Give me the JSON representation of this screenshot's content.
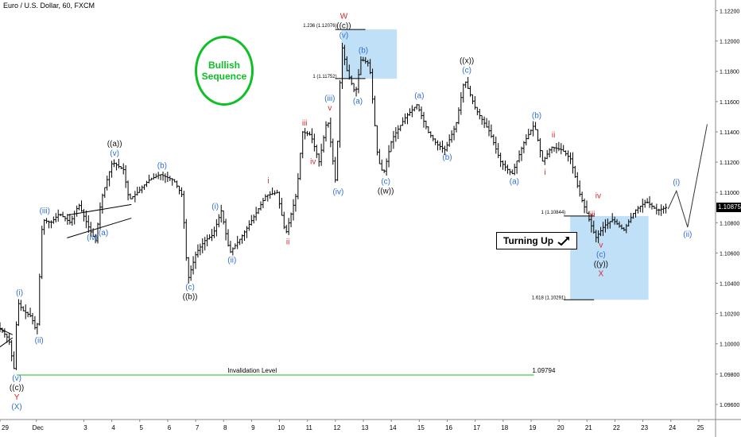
{
  "header": {
    "title": "Euro / U.S. Dollar, 60, FXCM"
  },
  "badge": {
    "text_line1": "Bullish",
    "text_line2": "Sequence"
  },
  "turning_box": {
    "label": "Turning Up",
    "icon": "arrow-up-right-icon"
  },
  "colors": {
    "blue_label": "#2f6fd6",
    "red_label": "#d42a2a",
    "black_label": "#111111",
    "green": "#0fbf26",
    "zone_fill": "#bfe0f7",
    "candle": "#000000"
  },
  "chart_data": {
    "type": "ohlc",
    "symbol": "Euro / U.S. Dollar",
    "timeframe": "60",
    "y_axis": {
      "range": [
        1.095,
        1.1225
      ],
      "ticks": [
        "1.12200",
        "1.12000",
        "1.11800",
        "1.11600",
        "1.11400",
        "1.11200",
        "1.11000",
        "1.10800",
        "1.10600",
        "1.10400",
        "1.10200",
        "1.10000",
        "1.09800",
        "1.09600"
      ],
      "tick_values": [
        1.122,
        1.12,
        1.118,
        1.116,
        1.114,
        1.112,
        1.11,
        1.108,
        1.106,
        1.104,
        1.102,
        1.1,
        1.098,
        1.096
      ],
      "current_price": "1.10875"
    },
    "x_axis": {
      "range": [
        0,
        25.6
      ],
      "ticks": [
        {
          "day": 0.0,
          "label": "29"
        },
        {
          "day": 1.3,
          "label": "Dec"
        },
        {
          "day": 3.0,
          "label": "3"
        },
        {
          "day": 4.0,
          "label": "4"
        },
        {
          "day": 5.0,
          "label": "5"
        },
        {
          "day": 6.0,
          "label": "6"
        },
        {
          "day": 7.0,
          "label": "7"
        },
        {
          "day": 8.0,
          "label": "8"
        },
        {
          "day": 9.0,
          "label": "9"
        },
        {
          "day": 10.0,
          "label": "10"
        },
        {
          "day": 11.0,
          "label": "11"
        },
        {
          "day": 12.0,
          "label": "12"
        },
        {
          "day": 13.0,
          "label": "13"
        },
        {
          "day": 14.0,
          "label": "14"
        },
        {
          "day": 15.0,
          "label": "15"
        },
        {
          "day": 16.0,
          "label": "16"
        },
        {
          "day": 17.0,
          "label": "17"
        },
        {
          "day": 18.0,
          "label": "18"
        },
        {
          "day": 19.0,
          "label": "19"
        },
        {
          "day": 20.0,
          "label": "20"
        },
        {
          "day": 21.0,
          "label": "21"
        },
        {
          "day": 22.0,
          "label": "22"
        },
        {
          "day": 23.0,
          "label": "23"
        },
        {
          "day": 24.0,
          "label": "24"
        },
        {
          "day": 25.0,
          "label": "25"
        }
      ]
    },
    "price_path": [
      [
        0,
        1.1012
      ],
      [
        0.4,
        1.1003
      ],
      [
        0.5,
        1.0992
      ],
      [
        0.6,
        1.0982
      ],
      [
        0.7,
        1.1028
      ],
      [
        0.9,
        1.1022
      ],
      [
        1.2,
        1.1018
      ],
      [
        1.4,
        1.1007
      ],
      [
        1.6,
        1.1082
      ],
      [
        1.9,
        1.108
      ],
      [
        2.2,
        1.1086
      ],
      [
        2.6,
        1.108
      ],
      [
        2.9,
        1.1092
      ],
      [
        3.3,
        1.1075
      ],
      [
        3.5,
        1.1068
      ],
      [
        3.7,
        1.1095
      ],
      [
        4.1,
        1.112
      ],
      [
        4.5,
        1.1115
      ],
      [
        4.7,
        1.1095
      ],
      [
        5.0,
        1.11
      ],
      [
        5.4,
        1.1108
      ],
      [
        5.8,
        1.1112
      ],
      [
        6.3,
        1.1108
      ],
      [
        6.6,
        1.1098
      ],
      [
        6.8,
        1.1042
      ],
      [
        7.1,
        1.106
      ],
      [
        7.4,
        1.1068
      ],
      [
        7.7,
        1.1072
      ],
      [
        8.0,
        1.1088
      ],
      [
        8.3,
        1.106
      ],
      [
        8.7,
        1.107
      ],
      [
        9.2,
        1.1085
      ],
      [
        9.6,
        1.1098
      ],
      [
        10.0,
        1.11
      ],
      [
        10.3,
        1.1072
      ],
      [
        10.7,
        1.11
      ],
      [
        10.9,
        1.114
      ],
      [
        11.2,
        1.1138
      ],
      [
        11.5,
        1.112
      ],
      [
        11.8,
        1.115
      ],
      [
        12.1,
        1.1105
      ],
      [
        12.3,
        1.1198
      ],
      [
        12.5,
        1.118
      ],
      [
        12.8,
        1.1165
      ],
      [
        13.0,
        1.1188
      ],
      [
        13.3,
        1.1185
      ],
      [
        13.6,
        1.1122
      ],
      [
        13.8,
        1.1112
      ],
      [
        14.1,
        1.1135
      ],
      [
        14.6,
        1.115
      ],
      [
        15.0,
        1.1158
      ],
      [
        15.4,
        1.114
      ],
      [
        15.7,
        1.1132
      ],
      [
        16.0,
        1.1128
      ],
      [
        16.4,
        1.1145
      ],
      [
        16.7,
        1.1175
      ],
      [
        17.1,
        1.1155
      ],
      [
        17.6,
        1.114
      ],
      [
        18.0,
        1.112
      ],
      [
        18.4,
        1.1112
      ],
      [
        18.8,
        1.1132
      ],
      [
        19.2,
        1.1145
      ],
      [
        19.5,
        1.112
      ],
      [
        19.8,
        1.113
      ],
      [
        20.2,
        1.1128
      ],
      [
        20.5,
        1.1122
      ],
      [
        20.8,
        1.11
      ],
      [
        21.1,
        1.1085
      ],
      [
        21.4,
        1.107
      ],
      [
        21.7,
        1.1078
      ],
      [
        22.0,
        1.1082
      ],
      [
        22.4,
        1.1075
      ],
      [
        22.8,
        1.1088
      ],
      [
        23.2,
        1.1094
      ],
      [
        23.6,
        1.1088
      ],
      [
        23.9,
        1.109
      ]
    ],
    "projection": [
      [
        23.9,
        1.1089
      ],
      [
        24.2,
        1.1101
      ],
      [
        24.6,
        1.1077
      ],
      [
        25.3,
        1.1145
      ]
    ],
    "zones": [
      {
        "x_start": 12.22,
        "x_end": 14.2,
        "y_low": 1.11752,
        "y_high": 1.12076,
        "top_label": "1.236 (1.12076)",
        "bottom_label": "1 (1.11752)"
      },
      {
        "x_start": 20.4,
        "x_end": 23.2,
        "y_low": 1.10291,
        "y_high": 1.10844,
        "top_label": "1 (1.10844)",
        "bottom_label": "1.618 (1.10291)"
      }
    ],
    "invalidation": {
      "label": "Invalidation Level",
      "value": "1.09794",
      "y": 1.09794,
      "x_start": 0.6,
      "x_end": 19.1
    },
    "triangle": {
      "x": [
        2.4,
        4.7
      ],
      "top": [
        1.1085,
        1.1092
      ],
      "bottom": [
        1.107,
        1.1083
      ]
    },
    "wave_labels": [
      {
        "text": "(v)",
        "x": 0.6,
        "y": 1.0982,
        "color": "blue",
        "pos": "below1"
      },
      {
        "text": "((c))",
        "x": 0.6,
        "y": 1.0982,
        "color": "black",
        "pos": "below2"
      },
      {
        "text": "Y",
        "x": 0.6,
        "y": 1.0982,
        "color": "red",
        "pos": "below3"
      },
      {
        "text": "(X)",
        "x": 0.6,
        "y": 1.0982,
        "color": "blue",
        "pos": "below4"
      },
      {
        "text": "(i)",
        "x": 0.7,
        "y": 1.1028,
        "color": "blue",
        "pos": "above1"
      },
      {
        "text": "(ii)",
        "x": 1.4,
        "y": 1.1007,
        "color": "blue",
        "pos": "below1"
      },
      {
        "text": "(iii)",
        "x": 1.6,
        "y": 1.1082,
        "color": "blue",
        "pos": "above1"
      },
      {
        "text": "(iv)",
        "x": 3.3,
        "y": 1.1075,
        "color": "blue",
        "pos": "below1"
      },
      {
        "text": "(a)",
        "x": 3.7,
        "y": 1.1078,
        "color": "blue",
        "pos": "below1"
      },
      {
        "text": "(v)",
        "x": 4.1,
        "y": 1.112,
        "color": "blue",
        "pos": "above1"
      },
      {
        "text": "((a))",
        "x": 4.1,
        "y": 1.112,
        "color": "black",
        "pos": "above2"
      },
      {
        "text": "(b)",
        "x": 5.8,
        "y": 1.1112,
        "color": "blue",
        "pos": "above1"
      },
      {
        "text": "(c)",
        "x": 6.8,
        "y": 1.1042,
        "color": "blue",
        "pos": "below1"
      },
      {
        "text": "((b))",
        "x": 6.8,
        "y": 1.1042,
        "color": "black",
        "pos": "below2"
      },
      {
        "text": "(i)",
        "x": 7.7,
        "y": 1.1085,
        "color": "blue",
        "pos": "above1"
      },
      {
        "text": "(ii)",
        "x": 8.3,
        "y": 1.106,
        "color": "blue",
        "pos": "below1"
      },
      {
        "text": "i",
        "x": 9.6,
        "y": 1.1102,
        "color": "red",
        "pos": "above1"
      },
      {
        "text": "ii",
        "x": 10.3,
        "y": 1.1072,
        "color": "red",
        "pos": "below1"
      },
      {
        "text": "iii",
        "x": 10.9,
        "y": 1.114,
        "color": "red",
        "pos": "above1"
      },
      {
        "text": "iv",
        "x": 11.2,
        "y": 1.1125,
        "color": "red",
        "pos": "below1"
      },
      {
        "text": "v",
        "x": 11.8,
        "y": 1.115,
        "color": "red",
        "pos": "above1"
      },
      {
        "text": "(iii)",
        "x": 11.8,
        "y": 1.115,
        "color": "blue",
        "pos": "above2"
      },
      {
        "text": "(iv)",
        "x": 12.1,
        "y": 1.1105,
        "color": "blue",
        "pos": "below1"
      },
      {
        "text": "(v)",
        "x": 12.3,
        "y": 1.1198,
        "color": "blue",
        "pos": "above1"
      },
      {
        "text": "((c))",
        "x": 12.3,
        "y": 1.1198,
        "color": "black",
        "pos": "above2"
      },
      {
        "text": "W",
        "x": 12.3,
        "y": 1.1198,
        "color": "red",
        "pos": "above3"
      },
      {
        "text": "(a)",
        "x": 12.8,
        "y": 1.1165,
        "color": "blue",
        "pos": "below1"
      },
      {
        "text": "(b)",
        "x": 13.0,
        "y": 1.1188,
        "color": "blue",
        "pos": "above1"
      },
      {
        "text": "(c)",
        "x": 13.8,
        "y": 1.1112,
        "color": "blue",
        "pos": "below1"
      },
      {
        "text": "((w))",
        "x": 13.8,
        "y": 1.1112,
        "color": "black",
        "pos": "below2"
      },
      {
        "text": "(a)",
        "x": 15.0,
        "y": 1.1158,
        "color": "blue",
        "pos": "above1"
      },
      {
        "text": "(b)",
        "x": 16.0,
        "y": 1.1128,
        "color": "blue",
        "pos": "below1"
      },
      {
        "text": "(c)",
        "x": 16.7,
        "y": 1.1175,
        "color": "blue",
        "pos": "above1"
      },
      {
        "text": "((x))",
        "x": 16.7,
        "y": 1.1175,
        "color": "black",
        "pos": "above2"
      },
      {
        "text": "(a)",
        "x": 18.4,
        "y": 1.1112,
        "color": "blue",
        "pos": "below1"
      },
      {
        "text": "(b)",
        "x": 19.2,
        "y": 1.1145,
        "color": "blue",
        "pos": "above1"
      },
      {
        "text": "i",
        "x": 19.5,
        "y": 1.1118,
        "color": "red",
        "pos": "below1"
      },
      {
        "text": "ii",
        "x": 19.8,
        "y": 1.1132,
        "color": "red",
        "pos": "above1"
      },
      {
        "text": "iii",
        "x": 21.2,
        "y": 1.109,
        "color": "red",
        "pos": "below1"
      },
      {
        "text": "iv",
        "x": 21.4,
        "y": 1.1092,
        "color": "red",
        "pos": "above1"
      },
      {
        "text": "v",
        "x": 21.5,
        "y": 1.107,
        "color": "red",
        "pos": "below1"
      },
      {
        "text": "(c)",
        "x": 21.5,
        "y": 1.107,
        "color": "blue",
        "pos": "below2"
      },
      {
        "text": "((y))",
        "x": 21.5,
        "y": 1.107,
        "color": "black",
        "pos": "below3"
      },
      {
        "text": "X",
        "x": 21.5,
        "y": 1.107,
        "color": "red",
        "pos": "below4"
      },
      {
        "text": "(i)",
        "x": 24.2,
        "y": 1.1101,
        "color": "blue",
        "pos": "above1"
      },
      {
        "text": "(ii)",
        "x": 24.6,
        "y": 1.1077,
        "color": "blue",
        "pos": "below1"
      }
    ]
  }
}
